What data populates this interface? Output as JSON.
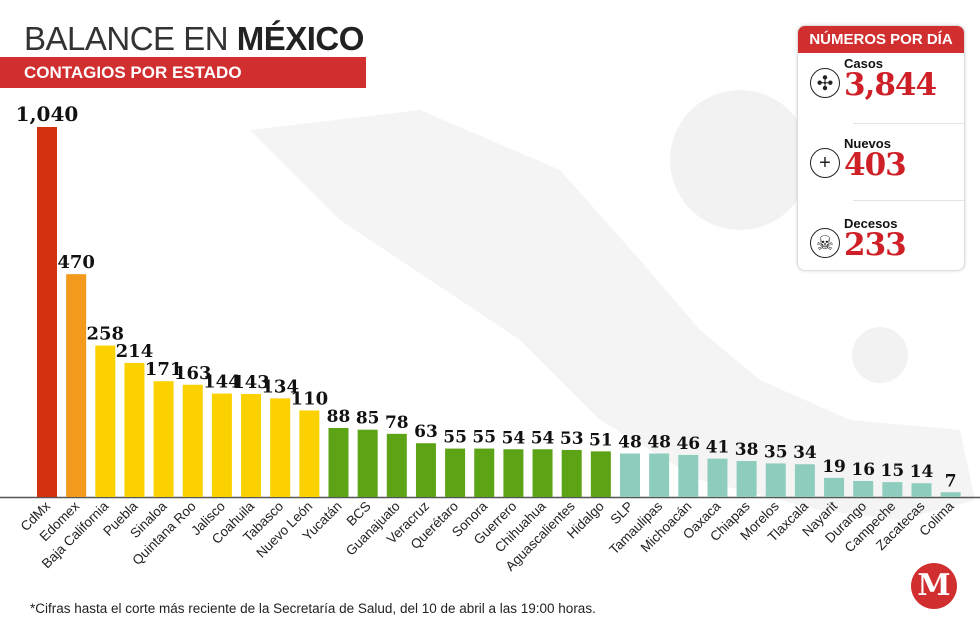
{
  "header": {
    "title_light": "BALANCE EN ",
    "title_bold": "MÉXICO",
    "subtitle": "CONTAGIOS POR ESTADO"
  },
  "panel": {
    "title": "NÚMEROS POR DÍA",
    "stats": [
      {
        "label": "Casos",
        "value": "3,844",
        "icon": "virus-icon"
      },
      {
        "label": "Nuevos",
        "value": "403",
        "icon": "plus-circle-icon"
      },
      {
        "label": "Decesos",
        "value": "233",
        "icon": "skull-icon"
      }
    ]
  },
  "footnote": "*Cifras hasta el corte más reciente de la Secretaría de Salud, del 10 de abril a las 19:00 horas.",
  "logo": "M",
  "chart_data": {
    "type": "bar",
    "categories": [
      "CdMx",
      "Edomex",
      "Baja California",
      "Puebla",
      "Sinaloa",
      "Quintana Roo",
      "Jalisco",
      "Coahuila",
      "Tabasco",
      "Nuevo León",
      "Yucatán",
      "BCS",
      "Guanajuato",
      "Veracruz",
      "Querétaro",
      "Sonora",
      "Guerrero",
      "Chihuahua",
      "Aguascalientes",
      "Hidalgo",
      "SLP",
      "Tamaulipas",
      "Michoacán",
      "Oaxaca",
      "Chiapas",
      "Morelos",
      "Tlaxcala",
      "Nayarit",
      "Durango",
      "Campeche",
      "Zacatecas",
      "Colima"
    ],
    "values": [
      1040,
      470,
      258,
      214,
      171,
      163,
      144,
      143,
      134,
      110,
      88,
      85,
      78,
      63,
      55,
      55,
      54,
      54,
      53,
      51,
      48,
      48,
      46,
      41,
      38,
      35,
      34,
      19,
      16,
      15,
      14,
      7
    ],
    "value_labels": [
      "1,040",
      "470",
      "258",
      "214",
      "171",
      "163",
      "144",
      "143",
      "134",
      "110",
      "88",
      "85",
      "78",
      "63",
      "55",
      "55",
      "54",
      "54",
      "53",
      "51",
      "48",
      "48",
      "46",
      "41",
      "38",
      "35",
      "34",
      "19",
      "16",
      "15",
      "14",
      "7"
    ],
    "colors": [
      "#d3300f",
      "#f39a1c",
      "#fcd100",
      "#fcd100",
      "#fcd100",
      "#fcd100",
      "#fcd100",
      "#fcd100",
      "#fcd100",
      "#fcd100",
      "#5da316",
      "#5da316",
      "#5da316",
      "#5da316",
      "#5da316",
      "#5da316",
      "#5da316",
      "#5da316",
      "#5da316",
      "#5da316",
      "#8ecdbd",
      "#8ecdbd",
      "#8ecdbd",
      "#8ecdbd",
      "#8ecdbd",
      "#8ecdbd",
      "#8ecdbd",
      "#8ecdbd",
      "#8ecdbd",
      "#8ecdbd",
      "#8ecdbd",
      "#8ecdbd"
    ],
    "title": "",
    "xlabel": "",
    "ylabel": "",
    "grid": false
  }
}
